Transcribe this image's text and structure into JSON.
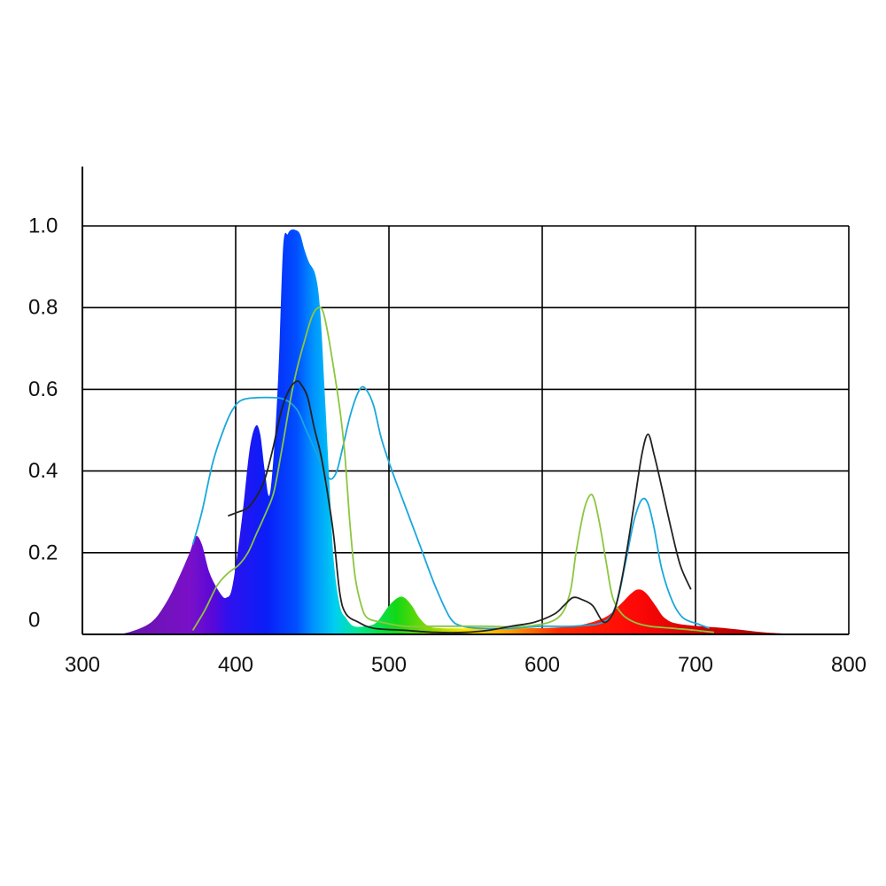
{
  "chart_data": {
    "type": "area",
    "title": "",
    "xlabel": "",
    "ylabel": "",
    "xlim": [
      300,
      800
    ],
    "ylim": [
      0,
      1.05
    ],
    "x_ticks": [
      300,
      400,
      500,
      600,
      700,
      800
    ],
    "x_tick_labels": [
      "300",
      "400",
      "500",
      "600",
      "700",
      "800"
    ],
    "y_ticks": [
      0,
      0.2,
      0.4,
      0.6,
      0.8,
      1.0
    ],
    "y_tick_labels": [
      "0",
      "0.2",
      "0.4",
      "0.6",
      "0.8",
      "1.0"
    ],
    "grid": true,
    "legend": "none",
    "spectrum_area": {
      "x": [
        318,
        330,
        345,
        355,
        363,
        370,
        374,
        378,
        383,
        390,
        394,
        398,
        404,
        409,
        413,
        416,
        419,
        422,
        425,
        428,
        431,
        434,
        436,
        439,
        442,
        445,
        448,
        452,
        455,
        458,
        461,
        464,
        468,
        472,
        477,
        485,
        492,
        500,
        506,
        510,
        515,
        520,
        526,
        535,
        560,
        590,
        620,
        640,
        650,
        658,
        663,
        668,
        674,
        680,
        690,
        720,
        745,
        770
      ],
      "y": [
        0,
        0.005,
        0.03,
        0.08,
        0.14,
        0.2,
        0.24,
        0.22,
        0.15,
        0.1,
        0.09,
        0.12,
        0.28,
        0.45,
        0.51,
        0.49,
        0.4,
        0.34,
        0.45,
        0.65,
        0.95,
        0.98,
        0.99,
        0.99,
        0.98,
        0.94,
        0.91,
        0.88,
        0.8,
        0.6,
        0.38,
        0.18,
        0.07,
        0.04,
        0.02,
        0.02,
        0.03,
        0.07,
        0.09,
        0.09,
        0.07,
        0.04,
        0.02,
        0.015,
        0.015,
        0.015,
        0.02,
        0.04,
        0.07,
        0.1,
        0.11,
        0.1,
        0.07,
        0.04,
        0.025,
        0.015,
        0.005,
        0
      ]
    },
    "series": [
      {
        "color": "#1aa7dc",
        "x": [
          372,
          378,
          385,
          392,
          398,
          405,
          420,
          432,
          440,
          446,
          452,
          458,
          462,
          466,
          470,
          475,
          481,
          485,
          490,
          495,
          502,
          510,
          520,
          530,
          540,
          548,
          560,
          580,
          600,
          620,
          640,
          648,
          654,
          660,
          665,
          669,
          673,
          678,
          685,
          692,
          702,
          709
        ],
        "y": [
          0.22,
          0.3,
          0.42,
          0.5,
          0.55,
          0.575,
          0.58,
          0.575,
          0.55,
          0.5,
          0.45,
          0.4,
          0.38,
          0.4,
          0.46,
          0.54,
          0.6,
          0.6,
          0.56,
          0.48,
          0.4,
          0.32,
          0.22,
          0.12,
          0.04,
          0.02,
          0.015,
          0.015,
          0.02,
          0.02,
          0.03,
          0.07,
          0.17,
          0.28,
          0.33,
          0.32,
          0.26,
          0.16,
          0.08,
          0.04,
          0.025,
          0.015
        ]
      },
      {
        "color": "#8cc63f",
        "x": [
          372,
          380,
          388,
          395,
          402,
          408,
          414,
          420,
          425,
          430,
          436,
          440,
          445,
          450,
          454,
          457,
          460,
          464,
          468,
          471,
          473,
          475,
          478,
          482,
          486,
          495,
          510,
          530,
          560,
          590,
          610,
          618,
          622,
          627,
          631,
          634,
          638,
          642,
          646,
          652,
          660,
          670,
          685,
          700,
          712
        ],
        "y": [
          0.01,
          0.06,
          0.12,
          0.15,
          0.17,
          0.2,
          0.25,
          0.3,
          0.35,
          0.45,
          0.58,
          0.65,
          0.72,
          0.78,
          0.8,
          0.79,
          0.74,
          0.65,
          0.55,
          0.45,
          0.35,
          0.25,
          0.14,
          0.07,
          0.04,
          0.03,
          0.02,
          0.02,
          0.02,
          0.02,
          0.04,
          0.1,
          0.2,
          0.3,
          0.34,
          0.33,
          0.26,
          0.17,
          0.09,
          0.05,
          0.03,
          0.02,
          0.015,
          0.01,
          0.005
        ]
      },
      {
        "color": "#222222",
        "x": [
          395,
          402,
          408,
          414,
          419,
          424,
          430,
          435,
          440,
          443,
          447,
          451,
          455,
          458,
          461,
          464,
          468,
          472,
          480,
          490,
          510,
          530,
          550,
          565,
          580,
          595,
          608,
          614,
          620,
          626,
          633,
          640,
          646,
          650,
          655,
          660,
          665,
          669,
          673,
          678,
          684,
          690,
          697
        ],
        "y": [
          0.29,
          0.3,
          0.31,
          0.34,
          0.38,
          0.45,
          0.55,
          0.6,
          0.62,
          0.61,
          0.58,
          0.51,
          0.45,
          0.39,
          0.32,
          0.24,
          0.1,
          0.05,
          0.03,
          0.015,
          0.01,
          0.005,
          0.005,
          0.01,
          0.02,
          0.03,
          0.05,
          0.07,
          0.09,
          0.085,
          0.07,
          0.03,
          0.05,
          0.1,
          0.2,
          0.32,
          0.44,
          0.49,
          0.44,
          0.36,
          0.26,
          0.17,
          0.11
        ]
      }
    ]
  }
}
